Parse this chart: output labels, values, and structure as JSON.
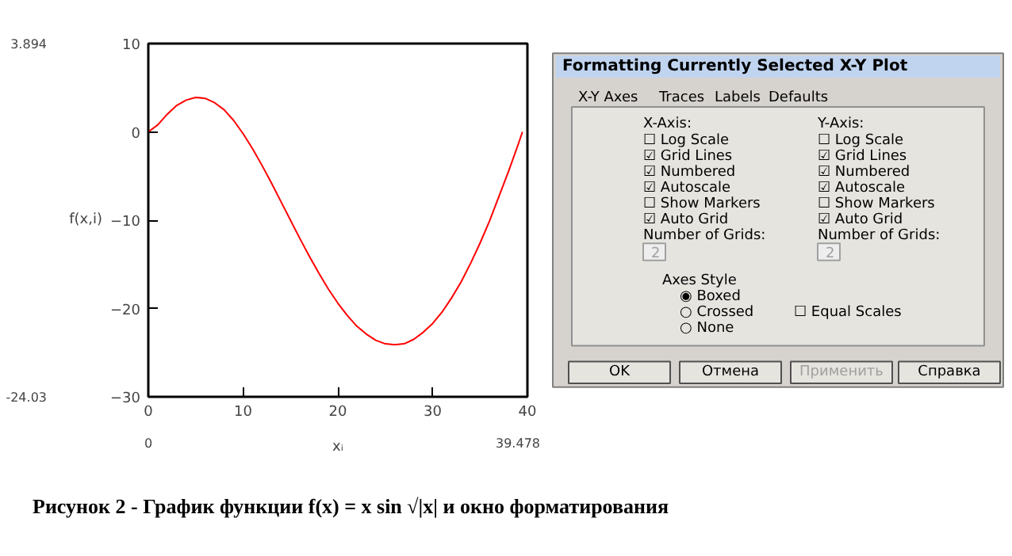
{
  "chart_data": [
    {
      "type": "line",
      "xlabel": "xᵢ",
      "ylabel": "f(x,i)",
      "x": [
        0,
        1,
        2,
        3,
        4,
        5,
        6,
        7,
        8,
        9,
        10,
        11,
        12,
        13,
        14,
        15,
        16,
        17,
        18,
        19,
        20,
        21,
        22,
        23,
        24,
        25,
        26,
        27,
        28,
        29,
        30,
        31,
        32,
        33,
        34,
        35,
        36,
        37,
        38,
        39,
        39.478
      ],
      "series": [
        {
          "color": "#ff0000",
          "values": [
            0,
            0.8,
            2.0,
            3.0,
            3.6,
            3.9,
            3.8,
            3.3,
            2.5,
            1.3,
            -0.2,
            -1.9,
            -3.8,
            -5.8,
            -7.9,
            -10.0,
            -12.1,
            -14.1,
            -16.0,
            -17.8,
            -19.4,
            -20.8,
            -22.0,
            -22.9,
            -23.6,
            -24.0,
            -24.1,
            -24.0,
            -23.5,
            -22.7,
            -21.7,
            -20.4,
            -18.8,
            -17.0,
            -14.9,
            -12.6,
            -10.1,
            -7.3,
            -4.5,
            -1.5,
            0
          ]
        }
      ],
      "xlim": [
        0,
        40
      ],
      "xticks": [
        0,
        10,
        20,
        30,
        40
      ],
      "ylim": [
        -30,
        10
      ],
      "yticks": [
        -30,
        -20,
        -10,
        0,
        10
      ],
      "grid": false,
      "marker": "none",
      "line_style": "solid",
      "annotations": [
        "3.894",
        "-24.03",
        "0",
        "39.478",
        "Рисунок 2 - График функции f(x) = x sin √|x| и окно форматирования"
      ]
    },
    {
      "type": "other",
      "title": "Formatting Currently Selected X-Y Plot",
      "annotations": [
        "X-Y Axes",
        "Traces",
        "Labels",
        "Defaults",
        "X-Axis:",
        "☐ Log Scale",
        "☑ Grid Lines",
        "☑ Numbered",
        "☑ Autoscale",
        "☐ Show Markers",
        "☑ Auto Grid",
        "Number of Grids:",
        "2",
        "Y-Axis:",
        "☐ Log Scale",
        "☑ Grid Lines",
        "☑ Numbered",
        "☑ Autoscale",
        "☐ Show Markers",
        "☑ Auto Grid",
        "Number of Grids:",
        "2",
        "Axes Style",
        "◉ Boxed",
        "○ Crossed",
        "○ None",
        "☐ Equal Scales",
        "OK",
        "Отмена",
        "Применить",
        "Справка"
      ]
    }
  ]
}
